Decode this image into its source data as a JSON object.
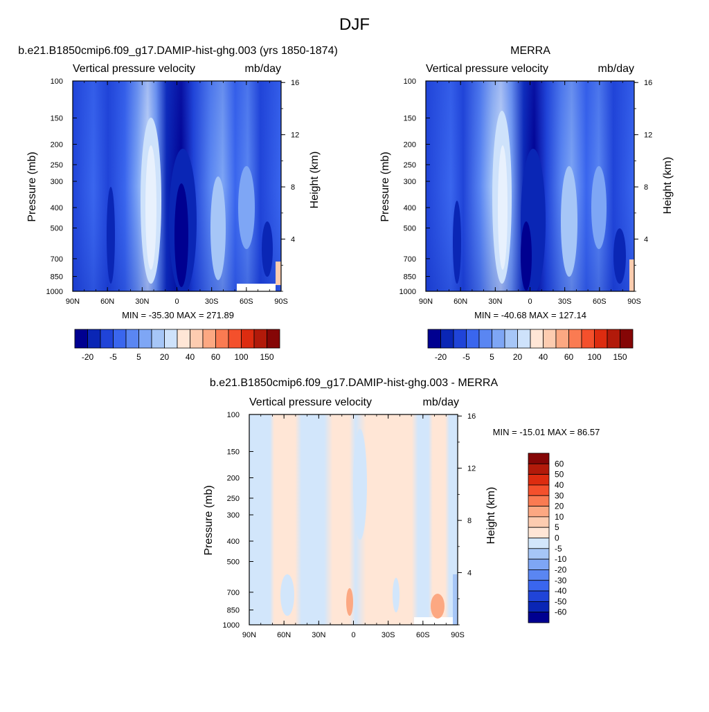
{
  "figure": {
    "title": "DJF"
  },
  "colors": {
    "abs_levels": [
      "#000090",
      "#0A26B5",
      "#2044D8",
      "#3A66EE",
      "#5A86F2",
      "#7EA6F5",
      "#A6C6F7",
      "#CEE2FB",
      "#FFE6D6",
      "#FDCCB0",
      "#FCA882",
      "#FA7B52",
      "#F4502C",
      "#DD2C10",
      "#B21A0A",
      "#850606"
    ],
    "diff_levels": [
      "#000090",
      "#0A26B5",
      "#2044D8",
      "#3A66EE",
      "#5A86F2",
      "#7EA6F5",
      "#A6C6F7",
      "#D2E6FB",
      "#FFE6D6",
      "#FDCCB0",
      "#FCA882",
      "#FA7B52",
      "#F4502C",
      "#DD2C10",
      "#B21A0A",
      "#850606"
    ]
  },
  "chart_data": [
    {
      "type": "heatmap",
      "title": "b.e21.B1850cmip6.f09_g17.DAMIP-hist-ghg.003 (yrs 1850-1874)",
      "subtitle_left": "Vertical pressure velocity",
      "subtitle_right": "mb/day",
      "xlabel": "",
      "ylabel": "Pressure (mb)",
      "y2label": "Height (km)",
      "x_ticks": [
        "90N",
        "60N",
        "30N",
        "0",
        "30S",
        "60S",
        "90S"
      ],
      "y_ticks": [
        "100",
        "150",
        "200",
        "250",
        "300",
        "400",
        "500",
        "700",
        "850",
        "1000"
      ],
      "y2_ticks": [
        "16",
        "12",
        "8",
        "4"
      ],
      "stats": "MIN = -35.30  MAX = 271.89",
      "colorbar_labels": [
        "-20",
        "-5",
        "5",
        "20",
        "40",
        "60",
        "100",
        "150"
      ],
      "ylim": [
        1000,
        100
      ],
      "min": -35.3,
      "max": 271.89
    },
    {
      "type": "heatmap",
      "title": "MERRA",
      "subtitle_left": "Vertical pressure velocity",
      "subtitle_right": "mb/day",
      "xlabel": "",
      "ylabel": "Pressure (mb)",
      "y2label": "Height (km)",
      "x_ticks": [
        "90N",
        "60N",
        "30N",
        "0",
        "30S",
        "60S",
        "90S"
      ],
      "y_ticks": [
        "100",
        "150",
        "200",
        "250",
        "300",
        "400",
        "500",
        "700",
        "850",
        "1000"
      ],
      "y2_ticks": [
        "16",
        "12",
        "8",
        "4"
      ],
      "stats": "MIN = -40.68  MAX = 127.14",
      "colorbar_labels": [
        "-20",
        "-5",
        "5",
        "20",
        "40",
        "60",
        "100",
        "150"
      ],
      "ylim": [
        1000,
        100
      ],
      "min": -40.68,
      "max": 127.14
    },
    {
      "type": "heatmap",
      "title": "b.e21.B1850cmip6.f09_g17.DAMIP-hist-ghg.003 - MERRA",
      "subtitle_left": "Vertical pressure velocity",
      "subtitle_right": "mb/day",
      "xlabel": "",
      "ylabel": "Pressure (mb)",
      "y2label": "Height (km)",
      "x_ticks": [
        "90N",
        "60N",
        "30N",
        "0",
        "30S",
        "60S",
        "90S"
      ],
      "y_ticks": [
        "100",
        "150",
        "200",
        "250",
        "300",
        "400",
        "500",
        "700",
        "850",
        "1000"
      ],
      "y2_ticks": [
        "16",
        "12",
        "8",
        "4"
      ],
      "stats": "MIN = -15.01  MAX =  86.57",
      "colorbar_labels": [
        "60",
        "50",
        "40",
        "30",
        "20",
        "10",
        "5",
        "0",
        "-5",
        "-10",
        "-20",
        "-30",
        "-40",
        "-50",
        "-60"
      ],
      "ylim": [
        1000,
        100
      ],
      "min": -15.01,
      "max": 86.57
    }
  ]
}
